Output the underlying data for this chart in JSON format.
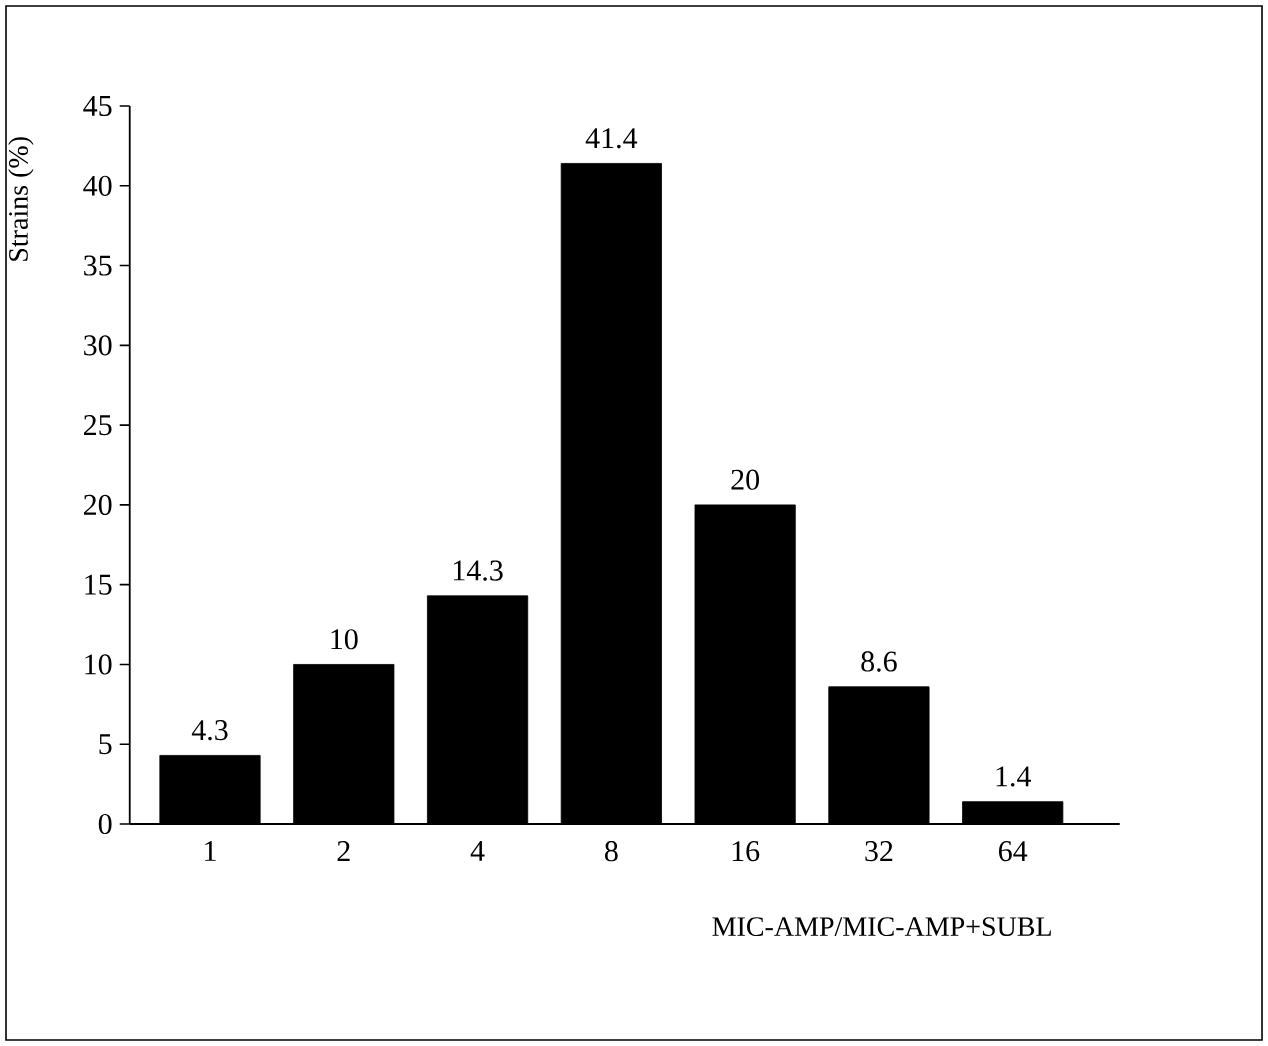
{
  "chart_data": {
    "type": "bar",
    "xlabel": "MIC-AMP/MIC-AMP+SUBL",
    "ylabel": "Strains (%)",
    "categories": [
      "1",
      "2",
      "4",
      "8",
      "16",
      "32",
      "64"
    ],
    "values": [
      4.3,
      10,
      14.3,
      41.4,
      20,
      8.6,
      1.4
    ],
    "color": "#000000",
    "data_labels": true,
    "ylim": [
      0,
      45
    ],
    "yticks": [
      0,
      5,
      10,
      15,
      20,
      25,
      30,
      35,
      40,
      45
    ],
    "grid": false
  }
}
